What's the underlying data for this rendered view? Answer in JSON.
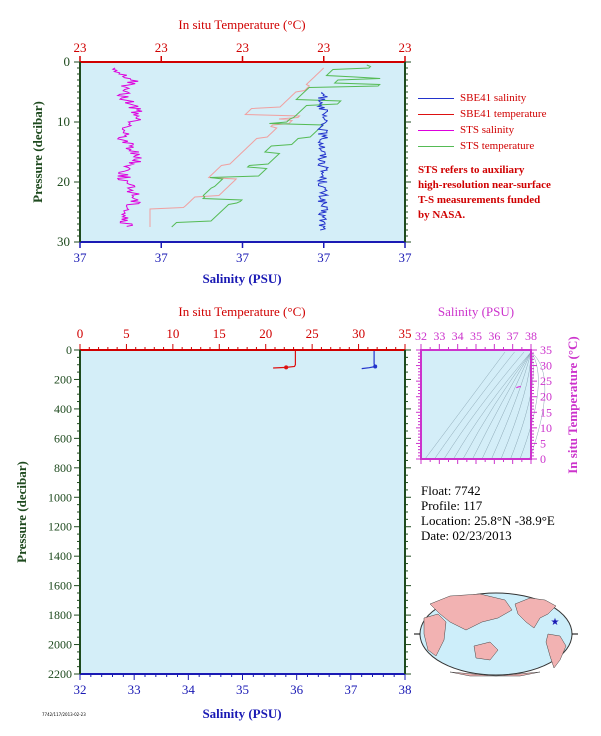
{
  "colors": {
    "plot_bg": "#d4eef8",
    "salinity_axis": "#1a1ab4",
    "temp_axis": "#d00000",
    "pressure_axis": "#1e4a1e",
    "sbe_sal": "#2233cc",
    "sbe_temp": "#dd1111",
    "sts_sal": "#dd00dd",
    "sts_temp": "#55bb55",
    "sts_temp_light": "#f0a0a0",
    "ts_frame": "#cc33cc"
  },
  "legend": [
    {
      "label": "SBE41 salinity",
      "color": "#2233cc"
    },
    {
      "label": "SBE41 temperature",
      "color": "#dd1111"
    },
    {
      "label": "STS salinity",
      "color": "#dd00dd"
    },
    {
      "label": "STS temperature",
      "color": "#55bb55"
    }
  ],
  "note_lines": [
    "STS refers to auxiliary",
    "high-resolution near-surface",
    "T-S measurements funded",
    "by NASA."
  ],
  "info": {
    "float": "Float:  7742",
    "profile": "Profile:  117",
    "location": "Location:  25.8°N  -38.9°E",
    "date": "Date:  02/23/2013"
  },
  "footer_id": "7742/117/2013-02-23",
  "chart_data": [
    {
      "type": "line",
      "title": "",
      "top_axis_label": "In situ Temperature (°C)",
      "top_ticks": [
        "23",
        "23",
        "23",
        "23",
        "23"
      ],
      "bottom_axis_label": "Salinity (PSU)",
      "bottom_ticks": [
        "37",
        "37",
        "37",
        "37",
        "37"
      ],
      "ylabel": "Pressure (decibar)",
      "y_ticks": [
        "0",
        "10",
        "20",
        "30"
      ],
      "ylim": [
        0,
        30
      ],
      "grid": false,
      "series": [
        {
          "name": "SBE41 salinity",
          "note": "narrow scattered trace near right-center, pressure 5–28"
        },
        {
          "name": "STS salinity",
          "note": "left trace, pressure 1–28"
        },
        {
          "name": "STS temperature",
          "note": "green stepped trace"
        },
        {
          "name": "SBE41 temperature",
          "note": "pink stepped trace"
        }
      ]
    },
    {
      "type": "line",
      "title": "",
      "top_axis_label": "In situ Temperature (°C)",
      "top_ticks": [
        "0",
        "5",
        "10",
        "15",
        "20",
        "25",
        "30",
        "35"
      ],
      "xlim_temp": [
        0,
        35
      ],
      "bottom_axis_label": "Salinity (PSU)",
      "bottom_ticks": [
        "32",
        "33",
        "34",
        "35",
        "36",
        "37",
        "38"
      ],
      "xlim_sal": [
        32,
        38
      ],
      "ylabel": "Pressure (decibar)",
      "y_ticks": [
        "0",
        "200",
        "400",
        "600",
        "800",
        "1000",
        "1200",
        "1400",
        "1600",
        "1800",
        "2000",
        "2200"
      ],
      "ylim": [
        0,
        2200
      ],
      "grid": false,
      "series": [
        {
          "name": "SBE41 temperature",
          "points": [
            [
              23.2,
              0
            ],
            [
              23.2,
              100
            ],
            [
              23.1,
              112
            ],
            [
              22.2,
              118
            ],
            [
              20.8,
              122
            ]
          ]
        },
        {
          "name": "SBE41 salinity",
          "points": [
            [
              37.43,
              0
            ],
            [
              37.43,
              95
            ],
            [
              37.45,
              112
            ],
            [
              37.34,
              120
            ],
            [
              37.2,
              126
            ]
          ]
        }
      ]
    },
    {
      "type": "scatter",
      "title": "",
      "x_axis_label": "Salinity (PSU)",
      "x_ticks": [
        "32",
        "33",
        "34",
        "35",
        "36",
        "37",
        "38"
      ],
      "xlim": [
        32,
        38
      ],
      "y_axis_label": "In situ Temperature (°C)",
      "y_ticks": [
        "0",
        "5",
        "10",
        "15",
        "20",
        "25",
        "30",
        "35"
      ],
      "ylim": [
        0,
        35
      ],
      "grid": false,
      "points": [
        [
          37.2,
          22.9
        ],
        [
          37.35,
          23.2
        ],
        [
          37.45,
          23.2
        ]
      ]
    }
  ]
}
